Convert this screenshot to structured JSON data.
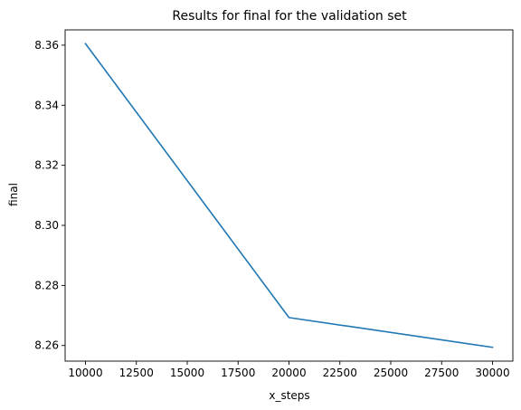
{
  "chart_data": {
    "type": "line",
    "title": "Results for final for the validation set",
    "xlabel": "x_steps",
    "ylabel": "final",
    "x": [
      10000,
      20000,
      30000
    ],
    "series": [
      {
        "values": [
          8.3605,
          8.2693,
          8.2594
        ],
        "color": "#1f77b4"
      }
    ],
    "xlim": [
      9000,
      31000
    ],
    "ylim": [
      8.2548,
      8.3651
    ],
    "xticks": [
      10000,
      12500,
      15000,
      17500,
      20000,
      22500,
      25000,
      27500,
      30000
    ],
    "yticks": [
      8.26,
      8.28,
      8.3,
      8.32,
      8.34,
      8.36
    ],
    "xtick_labels": [
      "10000",
      "12500",
      "15000",
      "17500",
      "20000",
      "22500",
      "25000",
      "27500",
      "30000"
    ],
    "ytick_labels": [
      "8.26",
      "8.28",
      "8.30",
      "8.32",
      "8.34",
      "8.36"
    ],
    "grid": false,
    "legend": false
  }
}
